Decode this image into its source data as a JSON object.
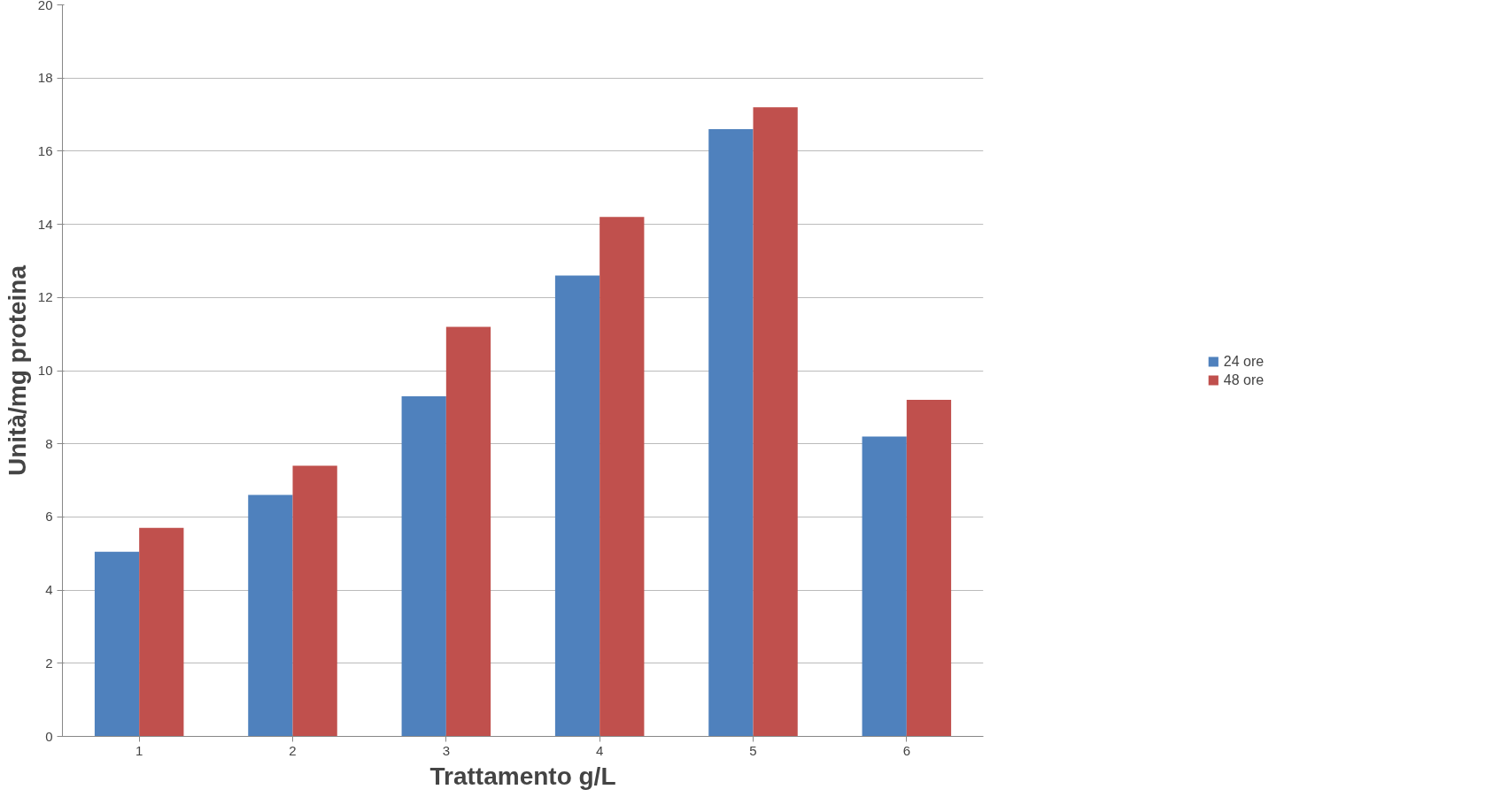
{
  "chart_data": {
    "type": "bar",
    "xlabel": "Trattamento g/L",
    "ylabel": "Unità/mg proteina",
    "categories": [
      "1",
      "2",
      "3",
      "4",
      "5",
      "6"
    ],
    "series": [
      {
        "name": "24 ore",
        "color": "#4f81bd",
        "values": [
          5.05,
          6.6,
          9.3,
          12.6,
          16.6,
          8.2
        ]
      },
      {
        "name": "48 ore",
        "color": "#c0504d",
        "values": [
          5.7,
          7.4,
          11.2,
          14.2,
          17.2,
          9.2
        ]
      }
    ],
    "ylim": [
      0,
      20
    ],
    "yticks": [
      0,
      2,
      4,
      6,
      8,
      10,
      12,
      14,
      16,
      18,
      20
    ],
    "grid": "y",
    "legend": "right"
  }
}
